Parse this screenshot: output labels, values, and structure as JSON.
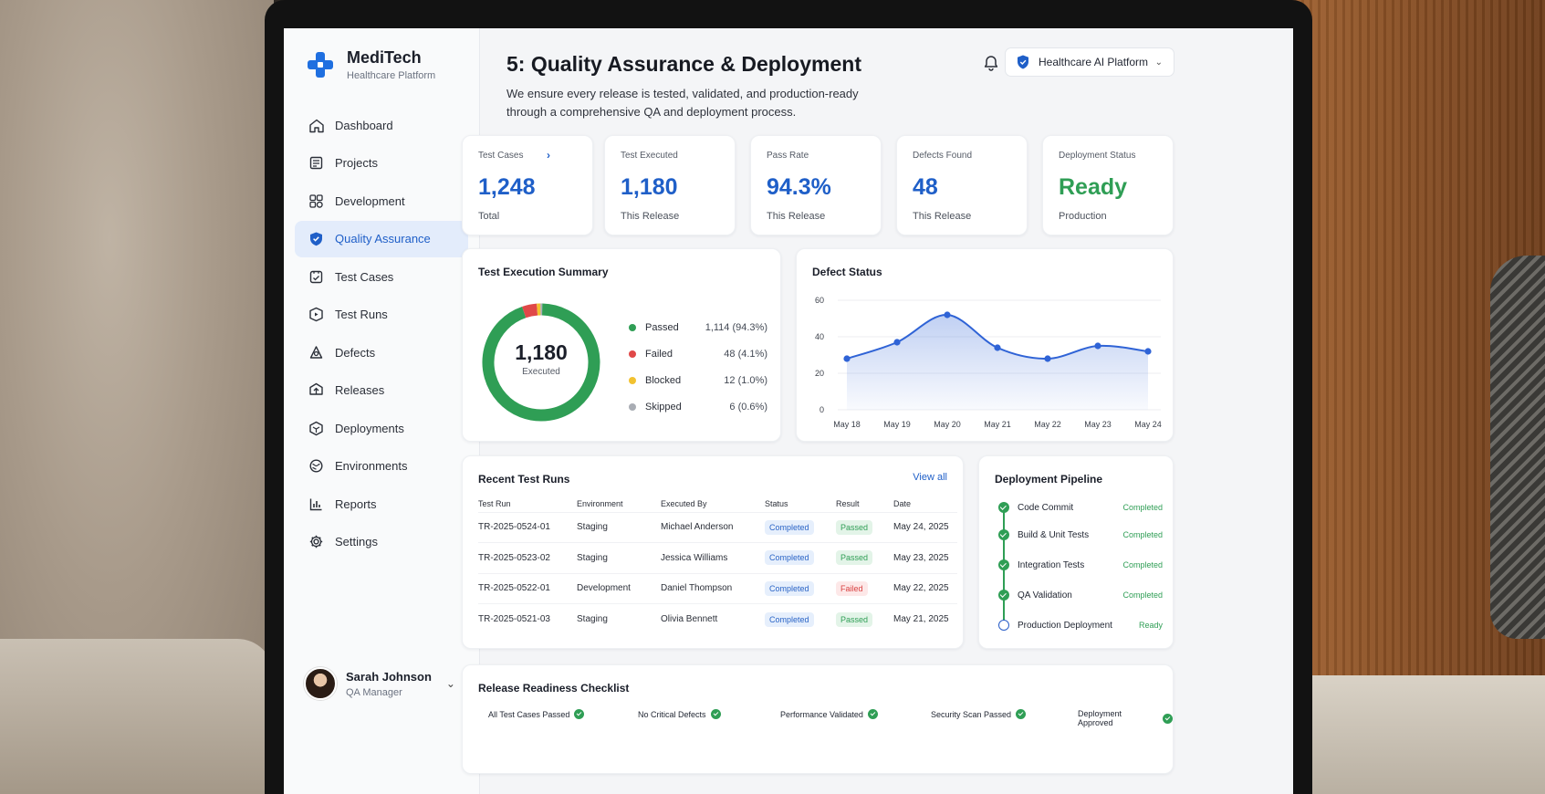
{
  "brand": {
    "name": "MediTech",
    "subtitle": "Healthcare Platform"
  },
  "sidebar": {
    "items": [
      {
        "label": "Dashboard",
        "icon": "home-icon"
      },
      {
        "label": "Projects",
        "icon": "projects-icon"
      },
      {
        "label": "Development",
        "icon": "development-icon"
      },
      {
        "label": "Quality Assurance",
        "icon": "shield-icon",
        "active": true
      },
      {
        "label": "Test Cases",
        "icon": "test-cases-icon"
      },
      {
        "label": "Test Runs",
        "icon": "test-runs-icon"
      },
      {
        "label": "Defects",
        "icon": "bug-icon"
      },
      {
        "label": "Releases",
        "icon": "releases-icon"
      },
      {
        "label": "Deployments",
        "icon": "deployments-icon"
      },
      {
        "label": "Environments",
        "icon": "environments-icon"
      },
      {
        "label": "Reports",
        "icon": "reports-icon"
      },
      {
        "label": "Settings",
        "icon": "gear-icon"
      }
    ]
  },
  "user": {
    "name": "Sarah Johnson",
    "role": "QA Manager"
  },
  "header": {
    "title": "5: Quality Assurance & Deployment",
    "description": "We ensure every release is tested, validated, and production-ready through a comprehensive QA and deployment process.",
    "platform": "Healthcare AI Platform"
  },
  "stats": [
    {
      "label": "Test Cases",
      "value": "1,248",
      "sub": "Total"
    },
    {
      "label": "Test Executed",
      "value": "1,180",
      "sub": "This Release"
    },
    {
      "label": "Pass Rate",
      "value": "94.3%",
      "sub": "This Release"
    },
    {
      "label": "Defects Found",
      "value": "48",
      "sub": "This Release"
    },
    {
      "label": "Deployment Status",
      "value": "Ready",
      "sub": "Production"
    }
  ],
  "execution": {
    "title": "Test Execution Summary",
    "total": "1,180",
    "total_label": "Executed",
    "legend": [
      {
        "label": "Passed",
        "value": "1,114 (94.3%)",
        "color": "#2f9e55",
        "count": 1114
      },
      {
        "label": "Failed",
        "value": "48 (4.1%)",
        "color": "#e04848",
        "count": 48
      },
      {
        "label": "Blocked",
        "value": "12 (1.0%)",
        "color": "#f2c230",
        "count": 12
      },
      {
        "label": "Skipped",
        "value": "6 (0.6%)",
        "color": "#a9adb4",
        "count": 6
      }
    ]
  },
  "chart_data": {
    "type": "area",
    "title": "Defect Status",
    "x": [
      "May 18",
      "May 19",
      "May 20",
      "May 21",
      "May 22",
      "May 23",
      "May 24"
    ],
    "series": [
      {
        "values": [
          28,
          37,
          52,
          34,
          28,
          35,
          32
        ]
      }
    ],
    "ylim": [
      0,
      60
    ],
    "yticks": [
      0,
      20,
      40,
      60
    ],
    "grid": true,
    "color": "#2f63d6"
  },
  "recent_runs": {
    "title": "Recent Test Runs",
    "view_all": "View all",
    "columns": [
      "Test Run",
      "Environment",
      "Executed By",
      "Status",
      "Result",
      "Date"
    ],
    "rows": [
      [
        "TR-2025-0524-01",
        "Staging",
        "Michael Anderson",
        "Completed",
        "Passed",
        "May 24, 2025"
      ],
      [
        "TR-2025-0523-02",
        "Staging",
        "Jessica Williams",
        "Completed",
        "Passed",
        "May 23, 2025"
      ],
      [
        "TR-2025-0522-01",
        "Development",
        "Daniel Thompson",
        "Completed",
        "Failed",
        "May 22, 2025"
      ],
      [
        "TR-2025-0521-03",
        "Staging",
        "Olivia Bennett",
        "Completed",
        "Passed",
        "May 21, 2025"
      ]
    ]
  },
  "pipeline": {
    "title": "Deployment Pipeline",
    "steps": [
      {
        "label": "Code Commit",
        "status": "Completed",
        "done": true
      },
      {
        "label": "Build & Unit Tests",
        "status": "Completed",
        "done": true
      },
      {
        "label": "Integration Tests",
        "status": "Completed",
        "done": true
      },
      {
        "label": "QA Validation",
        "status": "Completed",
        "done": true
      },
      {
        "label": "Production Deployment",
        "status": "Ready",
        "done": false
      }
    ]
  },
  "checklist": {
    "title": "Release Readiness Checklist",
    "items": [
      "All Test Cases Passed",
      "No Critical Defects",
      "Performance Validated",
      "Security Scan Passed",
      "Deployment Approved"
    ]
  }
}
